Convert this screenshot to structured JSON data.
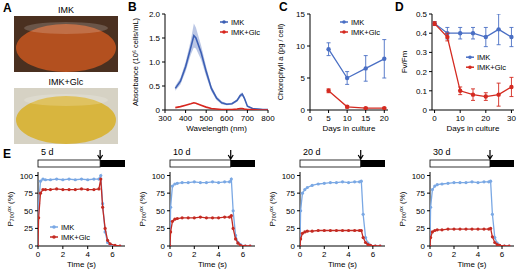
{
  "chart_data": [
    {
      "type": "image",
      "panel": "A",
      "labels": [
        "IMK",
        "IMK+Glc"
      ],
      "colors": [
        "#b3501f",
        "#d8b53e"
      ]
    },
    {
      "type": "line",
      "panel": "B",
      "x_label": "Wavelength (nm)",
      "y_label": "Absorbance (10⁶ cells/mL)",
      "xlim": [
        300,
        800
      ],
      "ylim": [
        0,
        2
      ],
      "xticks": [
        300,
        400,
        500,
        600,
        700,
        800
      ],
      "yticks": [
        0,
        0.5,
        {
          "value": 1,
          "label": "1.0"
        },
        1.5,
        {
          "value": 2,
          "label": "2.0"
        }
      ],
      "legend": "top-right",
      "x": [
        350,
        375,
        400,
        425,
        440,
        450,
        475,
        500,
        525,
        550,
        575,
        600,
        625,
        650,
        665,
        675,
        685,
        700,
        725,
        750,
        775,
        800
      ],
      "series": [
        {
          "name": "IMK",
          "color": "#3c5fb4",
          "marker": "none",
          "values": [
            0.45,
            0.6,
            0.9,
            1.3,
            1.55,
            1.5,
            1.2,
            0.8,
            0.45,
            0.25,
            0.15,
            0.12,
            0.13,
            0.2,
            0.3,
            0.33,
            0.25,
            0.08,
            0.03,
            0.02,
            0.01,
            0.01
          ],
          "errors": [
            0.05,
            0.07,
            0.1,
            0.15,
            0.25,
            0.22,
            0.15,
            0.1,
            0.06,
            0.04,
            0.03,
            0.02,
            0.02,
            0.03,
            0.04,
            0.04,
            0.03,
            0.02,
            0.01,
            0.01,
            0.01,
            0.01
          ]
        },
        {
          "name": "IMK+Glc",
          "color": "#d7261e",
          "marker": "none",
          "values": [
            0.05,
            0.07,
            0.1,
            0.13,
            0.15,
            0.14,
            0.1,
            0.06,
            0.03,
            0.02,
            0.01,
            0.01,
            0.01,
            0.02,
            0.03,
            0.03,
            0.02,
            0.01,
            0.01,
            0,
            0,
            0
          ]
        }
      ]
    },
    {
      "type": "line",
      "panel": "C",
      "x_label": "Days in culture",
      "y_label": "Chlorophyll a (pg / cell)",
      "xlim": [
        0,
        21
      ],
      "ylim": [
        0,
        15
      ],
      "xticks": [
        0,
        5,
        10,
        15,
        20
      ],
      "yticks": [
        0,
        5,
        10,
        15
      ],
      "legend": "top-right",
      "x": [
        5,
        10,
        15,
        20
      ],
      "series": [
        {
          "name": "IMK",
          "color": "#4a6fc4",
          "marker": "circle",
          "values": [
            9.5,
            5,
            6.5,
            8
          ],
          "errors": [
            1,
            1,
            2,
            3
          ]
        },
        {
          "name": "IMK+Glc",
          "color": "#d42a20",
          "marker": "circle",
          "values": [
            3,
            0.5,
            0.3,
            0.3
          ],
          "errors": [
            0.3,
            0.2,
            0.1,
            0.1
          ]
        }
      ]
    },
    {
      "type": "line",
      "panel": "D",
      "x_label": "Days in culture",
      "y_label": "Fv/Fm",
      "xlim": [
        -1,
        31
      ],
      "ylim": [
        0,
        0.5
      ],
      "xticks": [
        0,
        10,
        20,
        30
      ],
      "yticks": [
        0,
        0.1,
        0.2,
        0.3,
        0.4,
        0.5
      ],
      "legend": "right",
      "x": [
        0,
        5,
        10,
        15,
        20,
        25,
        30
      ],
      "series": [
        {
          "name": "IMK",
          "color": "#4a6fc4",
          "marker": "circle",
          "values": [
            0.45,
            0.4,
            0.4,
            0.4,
            0.38,
            0.42,
            0.38
          ],
          "errors": [
            0.01,
            0.03,
            0.03,
            0.03,
            0.05,
            0.08,
            0.05
          ]
        },
        {
          "name": "IMK+Glc",
          "color": "#d42a20",
          "marker": "circle",
          "values": [
            0.45,
            0.38,
            0.1,
            0.08,
            0.07,
            0.08,
            0.12
          ],
          "errors": [
            0.01,
            0.02,
            0.02,
            0.03,
            0.02,
            0.06,
            0.05
          ]
        }
      ]
    },
    {
      "type": "line",
      "panel": "E",
      "title": "5 d",
      "x_label": "Time (s)",
      "y_label": "P₇₀₀ᵒˣ (%)",
      "xlim": [
        0,
        7
      ],
      "ylim": [
        0,
        105
      ],
      "xticks": [
        0,
        2,
        4,
        6
      ],
      "yticks": [
        0,
        25,
        50,
        75,
        100
      ],
      "light_on": [
        0,
        5
      ],
      "legend": "bottom-left",
      "x": [
        0,
        0.05,
        0.2,
        0.4,
        0.6,
        1,
        1.5,
        2,
        2.5,
        3,
        3.5,
        4,
        4.5,
        4.9,
        5.05,
        5.2,
        5.4,
        5.6,
        5.8,
        6.2,
        6.6
      ],
      "series": [
        {
          "name": "IMK",
          "color": "#7aa8e4",
          "marker": "circle",
          "values": [
            0,
            60,
            92,
            95,
            94,
            94,
            95,
            94,
            95,
            94,
            95,
            94,
            95,
            95,
            100,
            60,
            20,
            5,
            2,
            0,
            0
          ]
        },
        {
          "name": "IMK+Glc",
          "color": "#c42a22",
          "marker": "circle",
          "values": [
            0,
            40,
            75,
            80,
            80,
            80,
            81,
            80,
            80,
            80,
            81,
            80,
            80,
            81,
            95,
            55,
            25,
            8,
            3,
            1,
            0
          ]
        }
      ]
    },
    {
      "type": "line",
      "title": "10 d",
      "x_label": "Time (s)",
      "y_label": "P₇₀₀ᵒˣ (%)",
      "xlim": [
        0,
        7
      ],
      "ylim": [
        0,
        105
      ],
      "xticks": [
        0,
        2,
        4,
        6
      ],
      "yticks": [
        0,
        25,
        50,
        75,
        100
      ],
      "light_on": [
        0,
        5
      ],
      "legend": false,
      "x": [
        0,
        0.05,
        0.2,
        0.4,
        0.6,
        1,
        1.5,
        2,
        2.5,
        3,
        3.5,
        4,
        4.5,
        4.9,
        5.05,
        5.2,
        5.4,
        5.6,
        5.8,
        6.2,
        6.6
      ],
      "series": [
        {
          "name": "IMK",
          "color": "#7aa8e4",
          "marker": "circle",
          "values": [
            0,
            55,
            85,
            88,
            89,
            90,
            90,
            91,
            90,
            90,
            91,
            90,
            91,
            91,
            95,
            50,
            15,
            5,
            2,
            0,
            0
          ]
        },
        {
          "name": "IMK+Glc",
          "color": "#c42a22",
          "marker": "circle",
          "values": [
            0,
            20,
            35,
            38,
            39,
            40,
            40,
            40,
            41,
            40,
            40,
            40,
            41,
            41,
            43,
            25,
            10,
            4,
            1,
            0,
            0
          ]
        }
      ]
    },
    {
      "type": "line",
      "title": "20 d",
      "x_label": "Time (s)",
      "y_label": "P₇₀₀ᵒˣ (%)",
      "xlim": [
        0,
        7
      ],
      "ylim": [
        0,
        105
      ],
      "xticks": [
        0,
        2,
        4,
        6
      ],
      "yticks": [
        0,
        25,
        50,
        75,
        100
      ],
      "light_on": [
        0,
        5
      ],
      "legend": false,
      "x": [
        0,
        0.05,
        0.2,
        0.4,
        0.6,
        1,
        1.5,
        2,
        2.5,
        3,
        3.5,
        4,
        4.5,
        4.9,
        5.05,
        5.2,
        5.4,
        5.6,
        5.8,
        6.2,
        6.6
      ],
      "series": [
        {
          "name": "IMK",
          "color": "#7aa8e4",
          "marker": "circle",
          "values": [
            0,
            50,
            75,
            80,
            83,
            86,
            88,
            89,
            90,
            90,
            91,
            90,
            91,
            91,
            92,
            45,
            12,
            4,
            1,
            0,
            0
          ]
        },
        {
          "name": "IMK+Glc",
          "color": "#c42a22",
          "marker": "circle",
          "values": [
            0,
            10,
            18,
            20,
            21,
            21,
            22,
            22,
            22,
            22,
            22,
            22,
            22,
            22,
            22,
            12,
            5,
            2,
            1,
            0,
            0
          ]
        }
      ]
    },
    {
      "type": "line",
      "title": "30 d",
      "x_label": "Time (s)",
      "y_label": "P₇₀₀ᵒˣ (%)",
      "xlim": [
        0,
        7
      ],
      "ylim": [
        0,
        105
      ],
      "xticks": [
        0,
        2,
        4,
        6
      ],
      "yticks": [
        0,
        25,
        50,
        75,
        100
      ],
      "light_on": [
        0,
        5
      ],
      "legend": false,
      "x": [
        0,
        0.05,
        0.2,
        0.4,
        0.6,
        1,
        1.5,
        2,
        2.5,
        3,
        3.5,
        4,
        4.5,
        4.9,
        5.05,
        5.2,
        5.4,
        5.6,
        5.8,
        6.2,
        6.6
      ],
      "series": [
        {
          "name": "IMK",
          "color": "#7aa8e4",
          "marker": "circle",
          "values": [
            0,
            55,
            80,
            85,
            87,
            88,
            89,
            90,
            90,
            90,
            91,
            90,
            91,
            91,
            92,
            45,
            12,
            4,
            1,
            0,
            0
          ]
        },
        {
          "name": "IMK+Glc",
          "color": "#c42a22",
          "marker": "circle",
          "values": [
            0,
            12,
            20,
            22,
            23,
            23,
            24,
            24,
            24,
            24,
            24,
            24,
            24,
            24,
            25,
            13,
            5,
            2,
            1,
            0,
            0
          ]
        }
      ]
    }
  ]
}
